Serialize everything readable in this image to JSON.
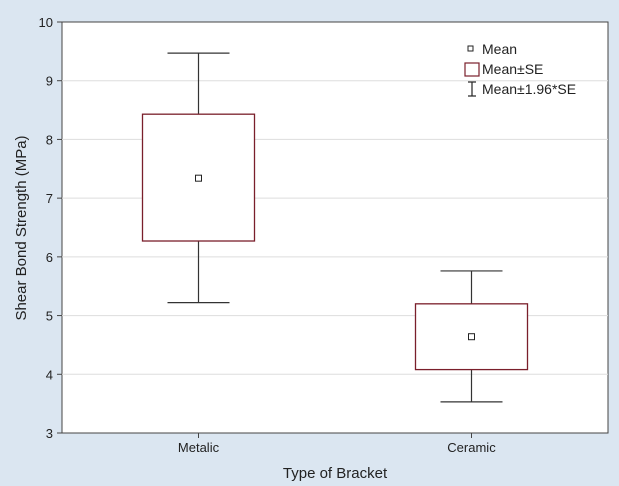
{
  "chart_data": {
    "type": "box",
    "title": "",
    "xlabel": "Type of Bracket",
    "ylabel": "Shear Bond Strength (MPa)",
    "ylim": [
      3,
      10
    ],
    "yticks": [
      "3",
      "4",
      "5",
      "6",
      "7",
      "8",
      "9",
      "10"
    ],
    "grid": true,
    "legend_position": "top-right",
    "legend": {
      "mean": "Mean",
      "se": "Mean±SE",
      "ci": "Mean±1.96*SE"
    },
    "categories": [
      "Metalic",
      "Ceramic"
    ],
    "series": [
      {
        "category": "Metalic",
        "mean": 7.34,
        "se_low": 6.27,
        "se_high": 8.43,
        "ci_low": 5.22,
        "ci_high": 9.47
      },
      {
        "category": "Ceramic",
        "mean": 4.64,
        "se_low": 4.08,
        "se_high": 5.2,
        "ci_low": 3.53,
        "ci_high": 5.76
      }
    ],
    "colors": {
      "background": "#dbe6f1",
      "plot_area": "#ffffff",
      "box_stroke": "#7a1f2b",
      "whisker": "#333333",
      "grid": "#dddddd"
    }
  }
}
